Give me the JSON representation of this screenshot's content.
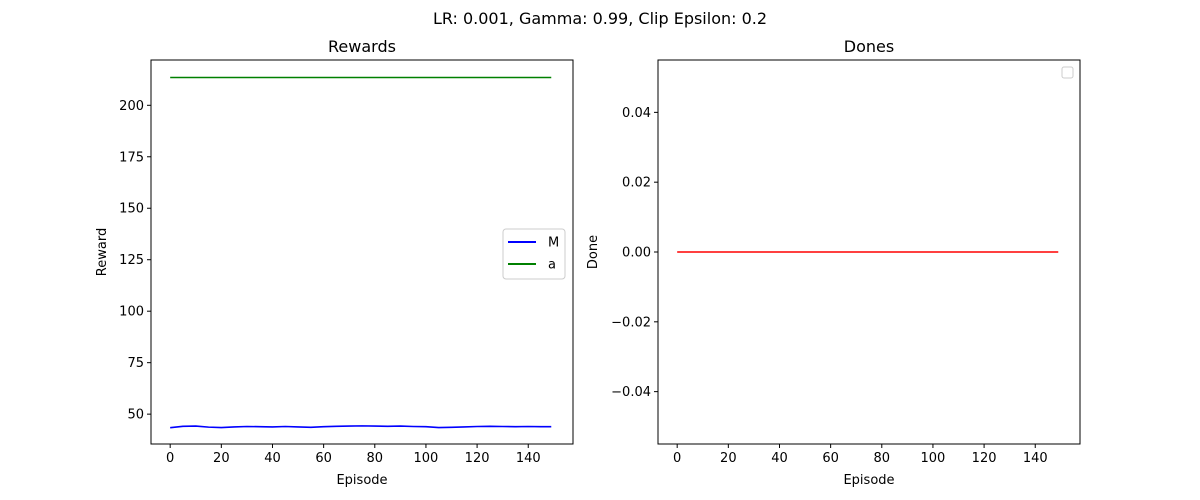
{
  "figure": {
    "suptitle": "LR: 0.001, Gamma: 0.99, Clip Epsilon: 0.2"
  },
  "chart_data": [
    {
      "type": "line",
      "title": "Rewards",
      "xlabel": "Episode",
      "ylabel": "Reward",
      "xlim": [
        -7.5,
        157.5
      ],
      "ylim": [
        35.5,
        222
      ],
      "xticks": [
        0,
        20,
        40,
        60,
        80,
        100,
        120,
        140
      ],
      "yticks": [
        50,
        75,
        100,
        125,
        150,
        175,
        200
      ],
      "legend": {
        "position": "center-right",
        "entries": [
          "M",
          "a"
        ]
      },
      "series": [
        {
          "name": "M",
          "color": "#0000ff",
          "x": [
            0,
            5,
            10,
            15,
            20,
            25,
            30,
            35,
            40,
            45,
            50,
            55,
            60,
            65,
            70,
            75,
            80,
            85,
            90,
            95,
            100,
            105,
            110,
            115,
            120,
            125,
            130,
            135,
            140,
            145,
            149
          ],
          "y": [
            43.4,
            44.1,
            44.2,
            43.7,
            43.5,
            43.8,
            44.0,
            43.9,
            43.8,
            44.0,
            43.8,
            43.6,
            43.9,
            44.1,
            44.2,
            44.3,
            44.2,
            44.1,
            44.2,
            44.0,
            43.9,
            43.5,
            43.6,
            43.8,
            44.0,
            44.1,
            44.0,
            43.9,
            44.0,
            43.9,
            43.9
          ]
        },
        {
          "name": "a",
          "color": "#008000",
          "x": [
            0,
            149
          ],
          "y": [
            213.5,
            213.5
          ]
        }
      ]
    },
    {
      "type": "line",
      "title": "Dones",
      "xlabel": "Episode",
      "ylabel": "Done",
      "xlim": [
        -7.5,
        157.5
      ],
      "ylim": [
        -0.055,
        0.055
      ],
      "xticks": [
        0,
        20,
        40,
        60,
        80,
        100,
        120,
        140
      ],
      "yticks": [
        -0.04,
        -0.02,
        0.0,
        0.02,
        0.04
      ],
      "ytick_labels": [
        "−0.04",
        "−0.02",
        "0.00",
        "0.02",
        "0.04"
      ],
      "legend": {
        "position": "top-right",
        "entries": []
      },
      "series": [
        {
          "color": "#ff0000",
          "x": [
            0,
            149
          ],
          "y": [
            0,
            0
          ]
        }
      ]
    }
  ]
}
